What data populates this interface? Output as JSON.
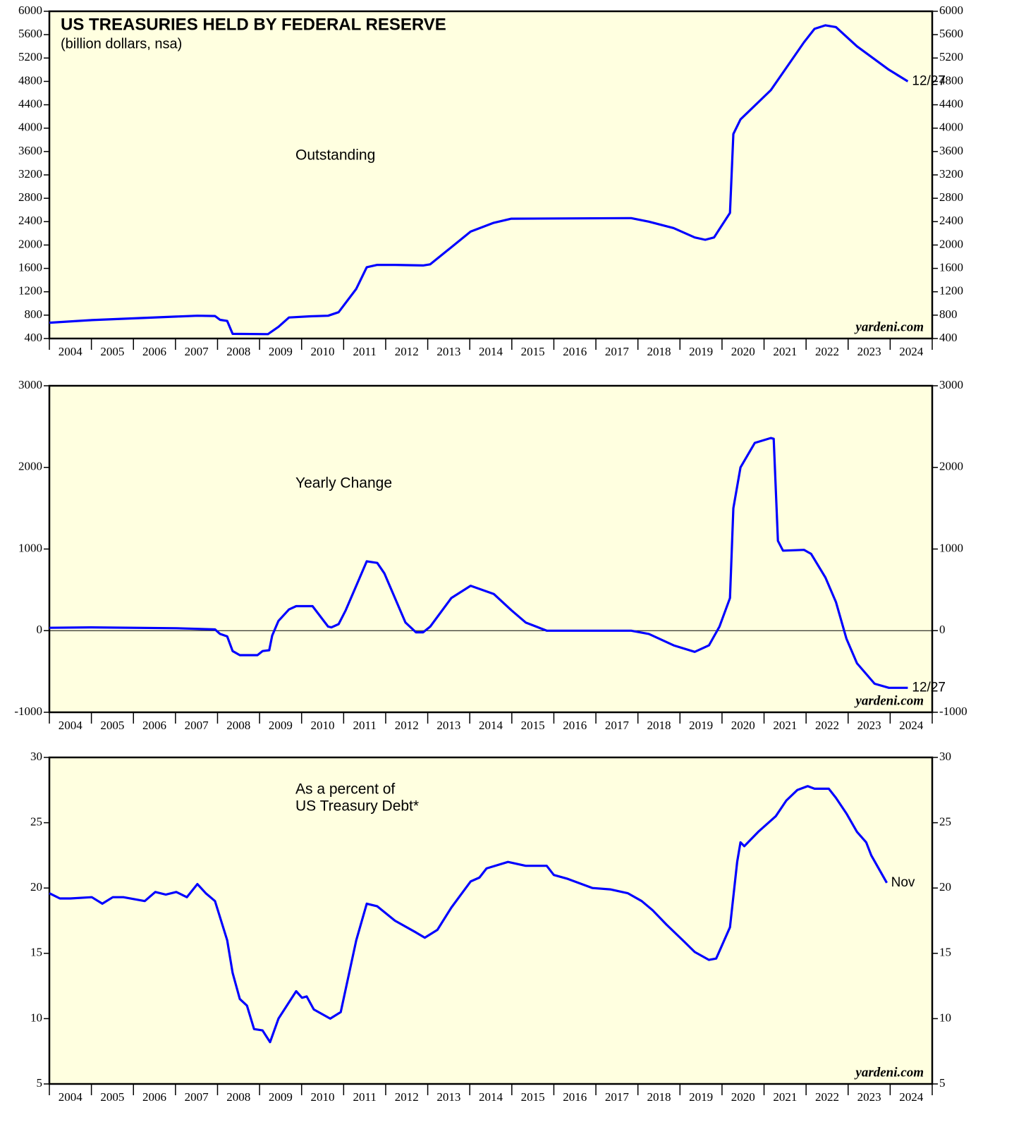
{
  "chart_data": [
    {
      "type": "line",
      "title": "US TREASURIES HELD BY FEDERAL RESERVE",
      "subtitle": "(billion dollars, nsa)",
      "annotation": "Outstanding",
      "end_label": "12/27",
      "source": "yardeni.com",
      "xlim": [
        2004,
        2025
      ],
      "xticks": [
        2004,
        2005,
        2006,
        2007,
        2008,
        2009,
        2010,
        2011,
        2012,
        2013,
        2014,
        2015,
        2016,
        2017,
        2018,
        2019,
        2020,
        2021,
        2022,
        2023,
        2024,
        2025
      ],
      "categories": [
        "2004",
        "2005",
        "2006",
        "2007",
        "2008",
        "2009",
        "2010",
        "2011",
        "2012",
        "2013",
        "2014",
        "2015",
        "2016",
        "2017",
        "2018",
        "2019",
        "2020",
        "2021",
        "2022",
        "2023",
        "2024"
      ],
      "ylim": [
        400,
        6000
      ],
      "yticks": [
        400,
        800,
        1200,
        1600,
        2000,
        2400,
        2800,
        3200,
        3600,
        4000,
        4400,
        4800,
        5200,
        5600,
        6000
      ],
      "x": [
        2004.0,
        2005.01,
        2007.02,
        2007.52,
        2007.94,
        2008.06,
        2008.23,
        2008.36,
        2009.2,
        2009.45,
        2009.7,
        2010.21,
        2010.63,
        2010.88,
        2011.3,
        2011.55,
        2011.8,
        2012.22,
        2012.89,
        2013.06,
        2014.02,
        2014.57,
        2014.99,
        2017.84,
        2018.26,
        2018.85,
        2019.35,
        2019.6,
        2019.81,
        2020.19,
        2020.27,
        2020.44,
        2021.16,
        2021.95,
        2022.2,
        2022.46,
        2022.71,
        2023.21,
        2023.97,
        2024.42
      ],
      "series": [
        {
          "color": "#0000ff",
          "values": [
            670,
            715,
            775,
            790,
            785,
            720,
            700,
            480,
            475,
            600,
            760,
            780,
            790,
            850,
            1250,
            1620,
            1660,
            1660,
            1650,
            1670,
            2230,
            2380,
            2450,
            2460,
            2400,
            2290,
            2130,
            2090,
            2130,
            2550,
            3900,
            4150,
            4650,
            5470,
            5700,
            5760,
            5730,
            5400,
            5000,
            4800
          ]
        }
      ]
    },
    {
      "type": "line",
      "annotation": "Yearly Change",
      "end_label": "12/27",
      "source": "yardeni.com",
      "zero_line": true,
      "xlim": [
        2004,
        2025
      ],
      "xticks": [
        2004,
        2005,
        2006,
        2007,
        2008,
        2009,
        2010,
        2011,
        2012,
        2013,
        2014,
        2015,
        2016,
        2017,
        2018,
        2019,
        2020,
        2021,
        2022,
        2023,
        2024,
        2025
      ],
      "categories": [
        "2004",
        "2005",
        "2006",
        "2007",
        "2008",
        "2009",
        "2010",
        "2011",
        "2012",
        "2013",
        "2014",
        "2015",
        "2016",
        "2017",
        "2018",
        "2019",
        "2020",
        "2021",
        "2022",
        "2023",
        "2024"
      ],
      "ylim": [
        -1000,
        3000
      ],
      "yticks": [
        -1000,
        0,
        1000,
        2000,
        3000
      ],
      "x": [
        2004.0,
        2005.01,
        2007.02,
        2007.94,
        2008.06,
        2008.23,
        2008.36,
        2008.53,
        2008.95,
        2009.07,
        2009.23,
        2009.3,
        2009.45,
        2009.7,
        2009.87,
        2010.26,
        2010.63,
        2010.71,
        2010.88,
        2011.05,
        2011.3,
        2011.55,
        2011.8,
        2011.97,
        2012.22,
        2012.47,
        2012.72,
        2012.89,
        2013.06,
        2013.56,
        2014.02,
        2014.57,
        2014.99,
        2015.33,
        2015.83,
        2017.84,
        2018.26,
        2018.85,
        2019.35,
        2019.69,
        2019.94,
        2020.19,
        2020.27,
        2020.44,
        2020.78,
        2021.16,
        2021.23,
        2021.33,
        2021.45,
        2021.95,
        2022.12,
        2022.46,
        2022.71,
        2022.96,
        2023.21,
        2023.63,
        2023.97,
        2024.42
      ],
      "series": [
        {
          "color": "#0000ff",
          "values": [
            35,
            40,
            30,
            15,
            -40,
            -70,
            -250,
            -300,
            -300,
            -250,
            -240,
            -60,
            120,
            260,
            300,
            300,
            50,
            40,
            80,
            250,
            550,
            850,
            830,
            700,
            400,
            100,
            -20,
            -20,
            50,
            400,
            550,
            450,
            250,
            100,
            0,
            0,
            -40,
            -180,
            -260,
            -180,
            50,
            400,
            1500,
            2000,
            2300,
            2360,
            2350,
            1100,
            980,
            990,
            940,
            650,
            350,
            -100,
            -400,
            -650,
            -700,
            -700
          ]
        }
      ]
    },
    {
      "type": "line",
      "annotation": [
        "As a percent of",
        "US Treasury Debt*"
      ],
      "end_label": "Nov",
      "source": "yardeni.com",
      "xlim": [
        2004,
        2025
      ],
      "xticks": [
        2004,
        2005,
        2006,
        2007,
        2008,
        2009,
        2010,
        2011,
        2012,
        2013,
        2014,
        2015,
        2016,
        2017,
        2018,
        2019,
        2020,
        2021,
        2022,
        2023,
        2024,
        2025
      ],
      "categories": [
        "2004",
        "2005",
        "2006",
        "2007",
        "2008",
        "2009",
        "2010",
        "2011",
        "2012",
        "2013",
        "2014",
        "2015",
        "2016",
        "2017",
        "2018",
        "2019",
        "2020",
        "2021",
        "2022",
        "2023",
        "2024"
      ],
      "ylim": [
        5,
        30
      ],
      "yticks": [
        5,
        10,
        15,
        20,
        25,
        30
      ],
      "x": [
        2004.0,
        2004.25,
        2004.5,
        2005.01,
        2005.26,
        2005.51,
        2005.76,
        2006.27,
        2006.52,
        2006.77,
        2007.02,
        2007.27,
        2007.52,
        2007.72,
        2007.94,
        2008.23,
        2008.36,
        2008.53,
        2008.7,
        2008.87,
        2009.07,
        2009.25,
        2009.45,
        2009.87,
        2010.01,
        2010.12,
        2010.29,
        2010.68,
        2010.93,
        2011.3,
        2011.55,
        2011.8,
        2012.22,
        2012.72,
        2012.93,
        2013.23,
        2013.56,
        2014.02,
        2014.23,
        2014.4,
        2014.91,
        2015.33,
        2015.83,
        2016.0,
        2016.33,
        2016.92,
        2017.34,
        2017.76,
        2018.09,
        2018.35,
        2018.68,
        2019.1,
        2019.35,
        2019.69,
        2019.86,
        2020.19,
        2020.36,
        2020.44,
        2020.53,
        2020.86,
        2021.28,
        2021.53,
        2021.79,
        2022.04,
        2022.2,
        2022.54,
        2022.71,
        2022.96,
        2023.21,
        2023.43,
        2023.55,
        2023.92
      ],
      "series": [
        {
          "color": "#0000ff",
          "values": [
            19.6,
            19.2,
            19.2,
            19.3,
            18.8,
            19.3,
            19.3,
            19.0,
            19.7,
            19.5,
            19.7,
            19.3,
            20.3,
            19.6,
            19.0,
            16.0,
            13.5,
            11.5,
            11.0,
            9.2,
            9.1,
            8.2,
            10.0,
            12.1,
            11.6,
            11.7,
            10.7,
            10.0,
            10.5,
            16.0,
            18.8,
            18.6,
            17.5,
            16.6,
            16.2,
            16.8,
            18.5,
            20.5,
            20.8,
            21.5,
            22.0,
            21.7,
            21.7,
            21.0,
            20.7,
            20.0,
            19.9,
            19.6,
            19.0,
            18.3,
            17.2,
            15.9,
            15.1,
            14.5,
            14.6,
            17.0,
            22.0,
            23.5,
            23.2,
            24.3,
            25.5,
            26.7,
            27.5,
            27.8,
            27.6,
            27.6,
            26.9,
            25.7,
            24.3,
            23.5,
            22.5,
            20.4
          ]
        }
      ]
    }
  ]
}
